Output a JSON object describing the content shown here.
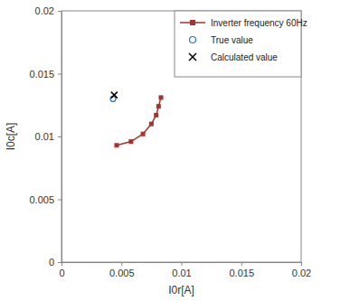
{
  "chart_data": {
    "type": "scatter",
    "x_label": "I0r[A]",
    "y_label": "I0c[A]",
    "xlim": [
      0,
      0.02
    ],
    "ylim": [
      0,
      0.02
    ],
    "xticks": [
      0,
      0.005,
      0.01,
      0.015,
      0.02
    ],
    "yticks": [
      0,
      0.005,
      0.01,
      0.015,
      0.02
    ],
    "grid": false,
    "legend": "upper right",
    "series": [
      {
        "name": "Inverter frequency 60Hz",
        "type": "line",
        "color": "#a8322d",
        "marker": "square",
        "x": [
          0.0046,
          0.0058,
          0.0068,
          0.0075,
          0.0079,
          0.0081,
          0.0083
        ],
        "values": [
          0.0093,
          0.0096,
          0.0102,
          0.011,
          0.0117,
          0.0124,
          0.0131
        ]
      },
      {
        "name": "True value",
        "type": "scatter",
        "color": "#2e74b5",
        "marker": "circle",
        "x": [
          0.0043
        ],
        "values": [
          0.013
        ]
      },
      {
        "name": "Calculated value",
        "type": "scatter",
        "color": "#000000",
        "marker": "x",
        "x": [
          0.0044
        ],
        "values": [
          0.0133
        ]
      }
    ]
  }
}
